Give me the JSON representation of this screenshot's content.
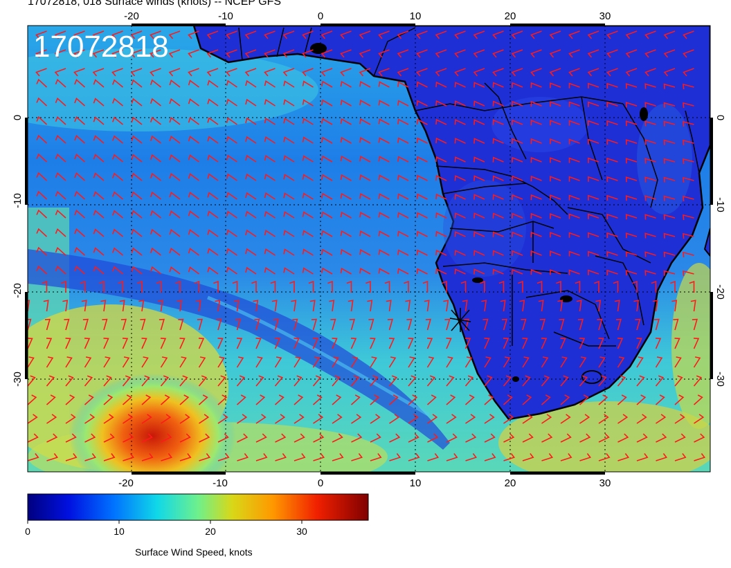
{
  "title": "17072818, 018 Surface winds (knots) -- NCEP GFS",
  "stamp": "17072818",
  "lon_ticks": [
    "-20",
    "-10",
    "0",
    "10",
    "20",
    "30"
  ],
  "lat_ticks": [
    "0",
    "-10",
    "-20",
    "-30"
  ],
  "colorbar": {
    "label": "Surface Wind Speed, knots",
    "ticks": [
      "0",
      "10",
      "20",
      "30"
    ],
    "range": [
      0,
      37
    ]
  },
  "colors": {
    "barb": "#ff1a1a",
    "land_base": "#1e2fd6",
    "coast": "#000000"
  }
}
